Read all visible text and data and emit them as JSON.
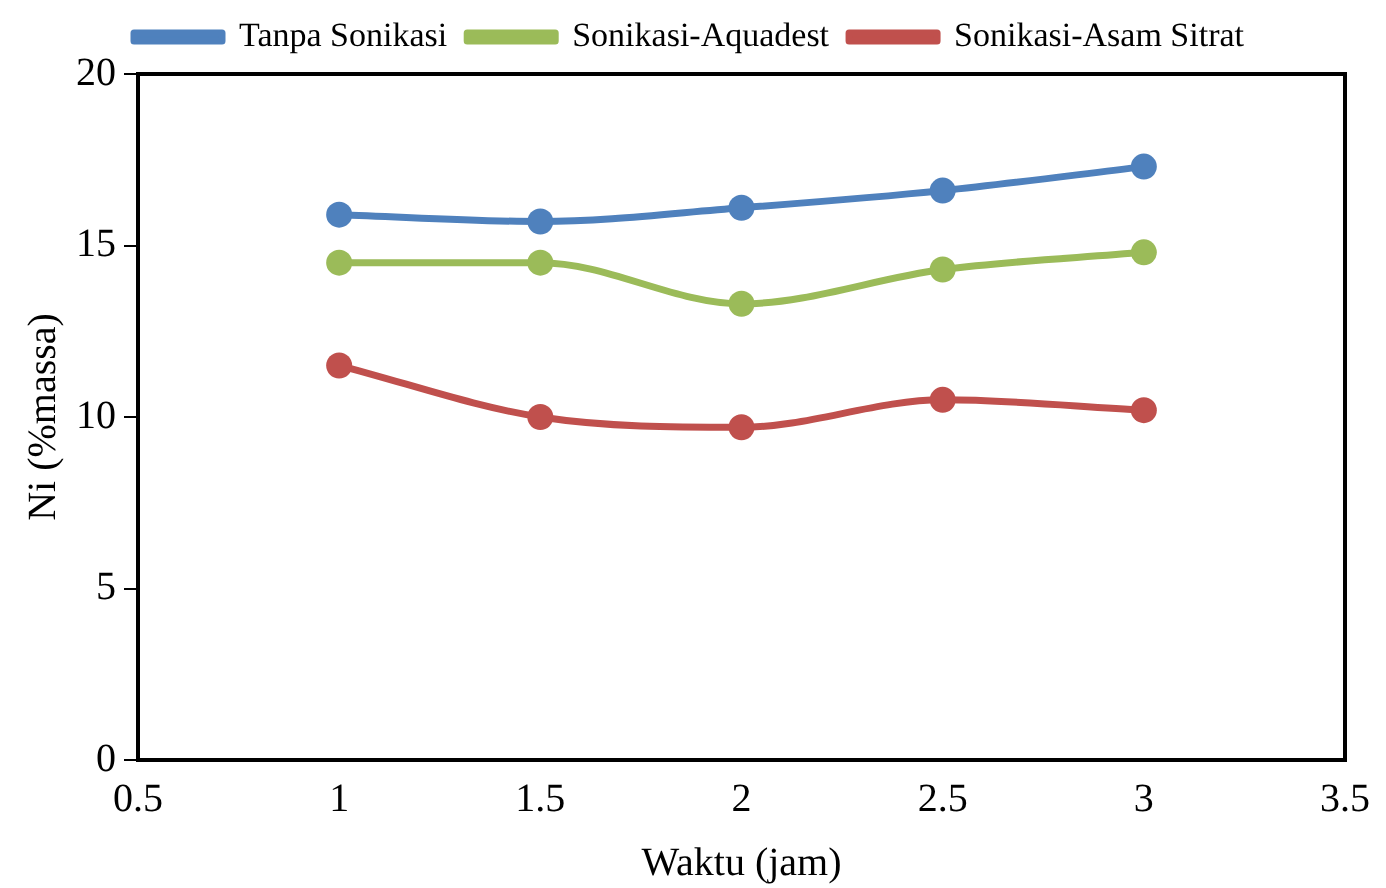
{
  "chart_data": {
    "type": "line",
    "xlabel": "Waktu (jam)",
    "ylabel": "Ni (%massa)",
    "x": [
      1,
      1.5,
      2,
      2.5,
      3
    ],
    "series": [
      {
        "name": "Tanpa Sonikasi",
        "color": "#4f81bd",
        "values": [
          15.9,
          15.7,
          16.1,
          16.6,
          17.3
        ]
      },
      {
        "name": "Sonikasi-Aquadest",
        "color": "#9bbb59",
        "values": [
          14.5,
          14.5,
          13.3,
          14.3,
          14.8
        ]
      },
      {
        "name": "Sonikasi-Asam Sitrat",
        "color": "#c0504d",
        "values": [
          11.5,
          10.0,
          9.7,
          10.5,
          10.2
        ]
      }
    ],
    "xlim": [
      0.5,
      3.5
    ],
    "xticks": [
      0.5,
      1,
      1.5,
      2,
      2.5,
      3,
      3.5
    ],
    "ylim": [
      0,
      20
    ],
    "yticks": [
      0,
      5,
      10,
      15,
      20
    ],
    "grid": false,
    "legend": "top",
    "marker": "circle",
    "line_style": "solid"
  }
}
